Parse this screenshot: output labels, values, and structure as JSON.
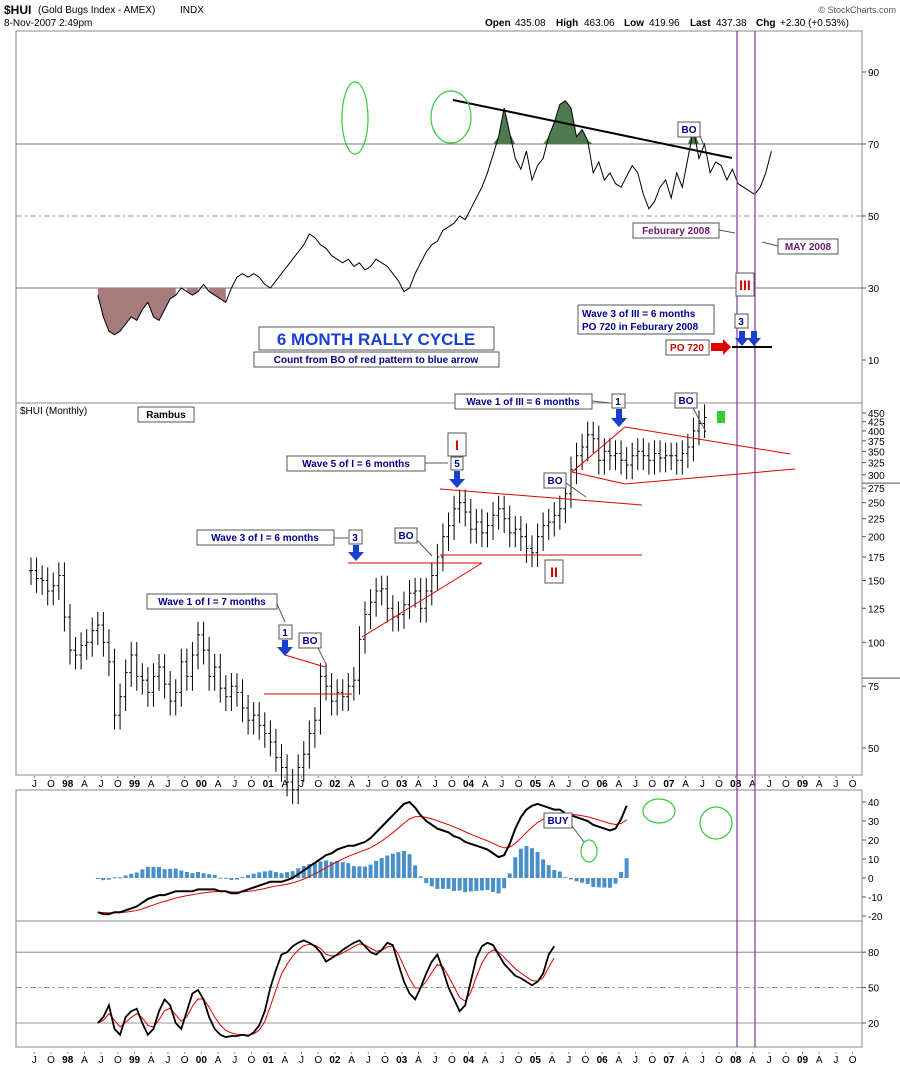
{
  "header": {
    "symbol": "$HUI",
    "name": "(Gold Bugs Index - AMEX)",
    "exchange": "INDX",
    "date": "8-Nov-2007 2:49pm",
    "open_label": "Open",
    "open": "435.08",
    "high_label": "High",
    "high": "463.06",
    "low_label": "Low",
    "low": "419.96",
    "last_label": "Last",
    "last": "437.38",
    "chg_label": "Chg",
    "chg": "+2.30 (+0.53%)",
    "credit": "© StockCharts.com"
  },
  "colors": {
    "price_bar": "#000000",
    "trendline": "#e00000",
    "arrow": "#1a3fd0",
    "label_text": "#00008b",
    "macd_hist": "#4a90c8",
    "macd_signal": "#e00000",
    "oval": "#33cc33",
    "vline": "#7a3aa0",
    "wave_roman": "#d40000",
    "area_neg": "#a67b7b",
    "area_pos": "#4f7a4f"
  },
  "annotations": {
    "title": "6 MONTH RALLY CYCLE",
    "subtitle": "Count from BO of red pattern to blue arrow",
    "feb_2008": "Feburary  2008",
    "may_2008": "MAY  2008",
    "wave3_note_1": "Wave 3 of III = 6 months",
    "wave3_note_2": "PO 720 in Feburary 2008",
    "po_720": "PO 720",
    "wave1_III": "Wave 1 of  III = 6 months",
    "wave5_I": "Wave 5 of  I  =  6 months",
    "wave3_I": "Wave 3 of I = 6 months",
    "wave1_I": "Wave 1 of I = 7 months",
    "bo": "BO",
    "buy": "BUY",
    "rambus": "Rambus",
    "roman_I": "I",
    "roman_II": "II",
    "roman_III": "III",
    "num_1": "1",
    "num_3": "3",
    "num_5": "5"
  },
  "chart_data": [
    {
      "type": "line",
      "name": "top-indicator-panel",
      "y_ticks": [
        "90",
        "70",
        "50",
        "30",
        "10"
      ],
      "ylim": [
        0,
        100
      ],
      "reference_lines": [
        70,
        50,
        30
      ],
      "x": [
        "1997",
        "1998",
        "1999",
        "2000",
        "2001",
        "2002",
        "2003",
        "2004",
        "2005",
        "2006",
        "2007"
      ],
      "values": [
        null,
        25,
        30,
        38,
        30,
        55,
        80,
        80,
        60,
        58,
        68
      ],
      "start_year": 1998.5,
      "monthly_values": [
        28,
        22,
        18,
        17,
        18,
        20,
        22,
        21,
        24,
        26,
        22,
        21,
        24,
        27,
        28,
        30,
        29,
        28,
        29,
        31,
        29,
        28,
        27,
        26,
        30,
        33,
        34,
        33,
        34,
        33,
        31,
        30,
        32,
        34,
        36,
        38,
        40,
        42,
        45,
        44,
        42,
        41,
        39,
        38,
        37,
        38,
        36,
        37,
        35,
        36,
        38,
        37,
        36,
        34,
        32,
        29,
        30,
        34,
        37,
        40,
        42,
        43,
        46,
        47,
        48,
        50,
        49,
        52,
        55,
        58,
        62,
        67,
        72,
        80,
        73,
        66,
        63,
        68,
        60,
        64,
        66,
        72,
        76,
        81,
        82,
        80,
        72,
        74,
        71,
        62,
        65,
        60,
        62,
        59,
        58,
        61,
        64,
        62,
        56,
        52,
        54,
        58,
        60,
        55,
        62,
        58,
        66,
        74,
        66,
        70,
        62,
        65,
        64,
        60,
        63,
        59,
        58,
        57,
        56,
        58,
        62,
        68
      ]
    },
    {
      "type": "bar",
      "name": "HUI-monthly",
      "title": "$HUI (Monthly)",
      "scale": "log",
      "y_ticks": [
        "450",
        "425",
        "400",
        "375",
        "350",
        "325",
        "300",
        "275",
        "250",
        "225",
        "200",
        "175",
        "150",
        "125",
        "100",
        "75",
        "50"
      ],
      "x_ticks": [
        "J",
        "O",
        "98",
        "A",
        "J",
        "O",
        "99",
        "A",
        "J",
        "O",
        "00",
        "A",
        "J",
        "O",
        "01",
        "A",
        "J",
        "O",
        "02",
        "A",
        "J",
        "O",
        "03",
        "A",
        "J",
        "O",
        "04",
        "A",
        "J",
        "O",
        "05",
        "A",
        "J",
        "O",
        "06",
        "A",
        "J",
        "O",
        "07",
        "A",
        "J",
        "O",
        "08",
        "A",
        "J",
        "O",
        "09",
        "A",
        "J",
        "O"
      ],
      "start_year": 1997.5,
      "monthly_close": [
        160,
        152,
        150,
        140,
        145,
        155,
        118,
        95,
        92,
        98,
        100,
        108,
        112,
        100,
        88,
        62,
        70,
        82,
        92,
        80,
        78,
        72,
        80,
        85,
        76,
        68,
        72,
        88,
        80,
        92,
        105,
        95,
        80,
        85,
        74,
        70,
        75,
        72,
        65,
        60,
        62,
        58,
        55,
        52,
        47,
        44,
        40,
        38,
        44,
        48,
        55,
        60,
        80,
        75,
        68,
        72,
        70,
        75,
        78,
        102,
        120,
        130,
        140,
        142,
        125,
        118,
        120,
        128,
        138,
        140,
        125,
        140,
        155,
        175,
        200,
        215,
        240,
        250,
        235,
        210,
        220,
        205,
        215,
        230,
        240,
        225,
        205,
        210,
        200,
        185,
        180,
        200,
        215,
        220,
        230,
        240,
        265,
        310,
        340,
        360,
        390,
        380,
        330,
        350,
        340,
        345,
        330,
        320,
        340,
        350,
        340,
        330,
        345,
        335,
        340,
        340,
        330,
        345,
        360,
        400,
        420,
        437
      ]
    },
    {
      "type": "line",
      "name": "MACD",
      "y_ticks": [
        "40",
        "30",
        "20",
        "10",
        "0",
        "-10",
        "-20"
      ],
      "ylim": [
        -20,
        42
      ],
      "start_year": 1998.5,
      "macd": [
        -18,
        -19,
        -19,
        -18,
        -18,
        -17,
        -16,
        -15,
        -13,
        -11,
        -10,
        -9,
        -9,
        -8,
        -7,
        -7,
        -7,
        -7,
        -6,
        -6,
        -6,
        -6,
        -7,
        -7,
        -8,
        -8,
        -7,
        -6,
        -5,
        -4,
        -3,
        -2,
        -2,
        -2,
        -1,
        0,
        2,
        4,
        6,
        8,
        10,
        12,
        13,
        15,
        16,
        17,
        17,
        18,
        19,
        21,
        24,
        27,
        30,
        33,
        36,
        39,
        40,
        37,
        33,
        30,
        28,
        26,
        25,
        24,
        22,
        21,
        19,
        18,
        17,
        16,
        15,
        13,
        11,
        12,
        18,
        26,
        32,
        36,
        38,
        39,
        38,
        37,
        36,
        36,
        34,
        33,
        32,
        31,
        30,
        28,
        27,
        26,
        25,
        26,
        31,
        38
      ]
    },
    {
      "type": "line",
      "name": "Stochastic",
      "y_ticks": [
        "80",
        "50",
        "20"
      ],
      "ylim": [
        0,
        100
      ],
      "start_year": 1997.5,
      "values": [
        20,
        25,
        35,
        15,
        10,
        25,
        30,
        32,
        20,
        10,
        15,
        30,
        40,
        35,
        20,
        15,
        30,
        45,
        48,
        40,
        25,
        15,
        10,
        8,
        9,
        9,
        10,
        9,
        12,
        18,
        30,
        50,
        65,
        78,
        80,
        85,
        88,
        90,
        88,
        85,
        80,
        72,
        75,
        78,
        82,
        85,
        88,
        90,
        85,
        80,
        78,
        82,
        88,
        86,
        70,
        55,
        45,
        40,
        50,
        62,
        72,
        78,
        65,
        50,
        40,
        30,
        35,
        55,
        75,
        85,
        88,
        86,
        78,
        70,
        65,
        60,
        58,
        55,
        52,
        55,
        62,
        78,
        85
      ]
    }
  ]
}
